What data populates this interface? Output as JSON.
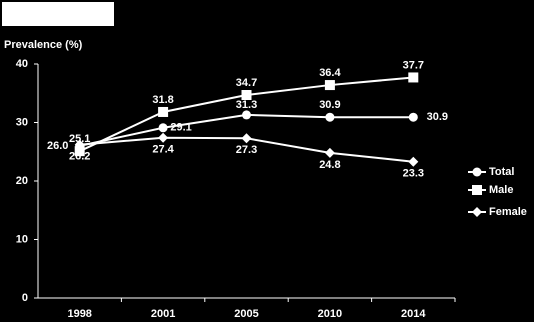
{
  "chart_data": {
    "type": "line",
    "y_label": "Prevalence (%)",
    "categories": [
      "1998",
      "2001",
      "2005",
      "2010",
      "2014"
    ],
    "series": [
      {
        "name": "Total",
        "color": "#ffffff",
        "marker": "circle",
        "values": [
          26.0,
          29.1,
          31.3,
          30.9,
          30.9
        ],
        "value_labels": [
          "26.0",
          "29.1",
          "31.3",
          "30.9",
          "30.9"
        ]
      },
      {
        "name": "Male",
        "color": "#ffffff",
        "marker": "square",
        "values": [
          25.1,
          31.8,
          34.7,
          36.4,
          37.7
        ],
        "value_labels": [
          "25.1",
          "31.8",
          "34.7",
          "36.4",
          "37.7"
        ]
      },
      {
        "name": "Female",
        "color": "#ffffff",
        "marker": "diamond",
        "values": [
          26.2,
          27.4,
          27.3,
          24.8,
          23.3
        ],
        "value_labels": [
          "26.2",
          "27.4",
          "27.3",
          "24.8",
          "23.3"
        ]
      }
    ],
    "ylim": [
      0,
      40
    ],
    "yticks": [
      0,
      10,
      20,
      30,
      40
    ],
    "grid": false,
    "legend": "right"
  }
}
